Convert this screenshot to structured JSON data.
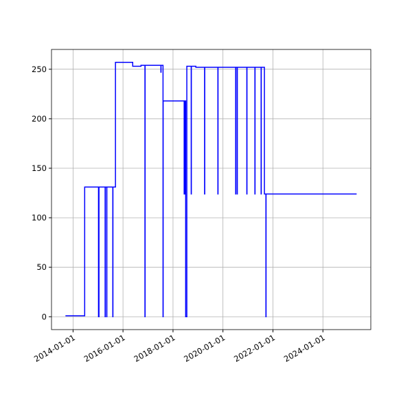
{
  "chart_data": {
    "type": "line",
    "x": [
      "2013-09-12",
      "2014-06-20",
      "2014-06-20",
      "2015-01-08",
      "2015-01-08",
      "2015-01-15",
      "2015-01-15",
      "2015-04-15",
      "2015-04-15",
      "2015-04-17",
      "2015-04-17",
      "2015-05-08",
      "2015-05-08",
      "2015-05-10",
      "2015-05-10",
      "2015-08-05",
      "2015-08-05",
      "2015-08-07",
      "2015-08-07",
      "2015-09-13",
      "2015-09-13",
      "2016-05-22",
      "2016-05-22",
      "2016-09-20",
      "2016-09-20",
      "2016-11-17",
      "2016-11-17",
      "2016-11-19",
      "2016-11-19",
      "2017-07-08",
      "2017-07-08",
      "2017-07-10",
      "2017-07-10",
      "2017-08-08",
      "2017-08-08",
      "2017-08-10",
      "2017-08-10",
      "2018-06-13",
      "2018-06-13",
      "2018-06-20",
      "2018-06-20",
      "2018-07-05",
      "2018-07-05",
      "2018-07-22",
      "2018-07-22",
      "2018-09-24",
      "2018-09-24",
      "2018-09-26",
      "2018-09-26",
      "2018-12-01",
      "2018-12-01",
      "2019-04-08",
      "2019-04-08",
      "2019-04-10",
      "2019-04-10",
      "2019-10-19",
      "2019-10-19",
      "2019-10-21",
      "2019-10-21",
      "2020-07-05",
      "2020-07-05",
      "2020-07-07",
      "2020-07-07",
      "2020-07-27",
      "2020-07-27",
      "2020-07-29",
      "2020-07-29",
      "2020-12-15",
      "2020-12-15",
      "2020-12-17",
      "2020-12-17",
      "2021-04-12",
      "2021-04-12",
      "2021-04-14",
      "2021-04-14",
      "2021-07-12",
      "2021-07-12",
      "2021-07-14",
      "2021-07-14",
      "2021-08-29",
      "2021-08-29",
      "2021-09-20",
      "2021-09-20",
      "2021-09-22",
      "2021-09-22",
      "2025-05-08"
    ],
    "series": [
      {
        "color": "#0000ff",
        "values": [
          1,
          1,
          131,
          131,
          0,
          0,
          131,
          131,
          0,
          0,
          131,
          131,
          0,
          0,
          131,
          131,
          0,
          0,
          131,
          131,
          257,
          257,
          253,
          253,
          254,
          254,
          0,
          0,
          254,
          254,
          247,
          247,
          254,
          254,
          0,
          0,
          218,
          218,
          124,
          124,
          218,
          218,
          0,
          0,
          253,
          253,
          124,
          124,
          253,
          253,
          252,
          252,
          124,
          124,
          252,
          252,
          124,
          124,
          252,
          252,
          124,
          124,
          252,
          252,
          124,
          124,
          252,
          252,
          124,
          124,
          252,
          252,
          124,
          124,
          252,
          252,
          124,
          124,
          252,
          252,
          124,
          124,
          0,
          0,
          124,
          124
        ]
      }
    ],
    "xlim": [
      "2013-02-20",
      "2025-12-01"
    ],
    "xticks": [
      "2014-01-01",
      "2016-01-01",
      "2018-01-01",
      "2020-01-01",
      "2022-01-01",
      "2024-01-01"
    ],
    "ylim": [
      -13,
      270
    ],
    "yticks": [
      0,
      50,
      100,
      150,
      200,
      250
    ],
    "grid": true
  }
}
